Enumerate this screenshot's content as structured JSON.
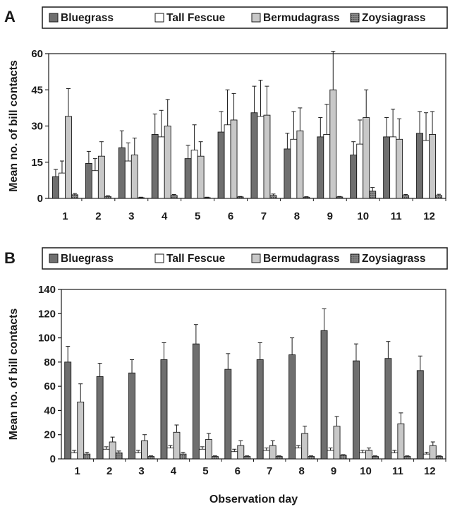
{
  "colors": {
    "bluegrass": "#6f6f6f",
    "tall_fescue": "#ffffff",
    "bermudagrass": "#c8c8c8",
    "zoysiagrass": "#8c8c8c",
    "stroke": "#1a1a1a"
  },
  "chart_data": [
    {
      "type": "bar",
      "panel_label": "A",
      "xlabel": "",
      "ylabel": "Mean no. of bill contacts",
      "ylim": [
        0,
        60
      ],
      "yticks": [
        0,
        15,
        30,
        45,
        60
      ],
      "legend_position": "top",
      "categories": [
        "1",
        "2",
        "3",
        "4",
        "5",
        "6",
        "7",
        "8",
        "9",
        "10",
        "11",
        "12"
      ],
      "series": [
        {
          "name": "Bluegrass",
          "values": [
            9,
            14.5,
            21,
            26.5,
            16.5,
            27.5,
            35.5,
            20.5,
            25.5,
            18,
            25.5,
            27
          ],
          "errors": [
            3,
            5,
            7,
            8.5,
            5.5,
            8.5,
            11,
            6.5,
            8,
            5.5,
            8,
            9
          ]
        },
        {
          "name": "Tall Fescue",
          "values": [
            10.5,
            11.5,
            15.5,
            25.5,
            20,
            30.5,
            34,
            24.5,
            26.5,
            22.5,
            25.5,
            24
          ],
          "errors": [
            5,
            5,
            7.5,
            11,
            10.5,
            14.5,
            15,
            11.5,
            12.5,
            10,
            11.5,
            11.5
          ]
        },
        {
          "name": "Bermudagrass",
          "values": [
            34,
            17.5,
            18,
            30,
            17.5,
            32.5,
            34.5,
            28,
            45,
            33.5,
            24.5,
            26.5
          ],
          "errors": [
            11.5,
            6,
            7,
            11,
            6,
            11,
            12,
            9.5,
            16,
            11.5,
            8.5,
            9.5
          ]
        },
        {
          "name": "Zoysiagrass",
          "values": [
            1.5,
            0.8,
            0.3,
            1.2,
            0.3,
            0.6,
            1.2,
            0.5,
            0.6,
            3,
            1.2,
            1.2
          ],
          "errors": [
            0.5,
            0.3,
            0.2,
            0.4,
            0.2,
            0.2,
            0.6,
            0.2,
            0.2,
            1.5,
            0.4,
            0.5
          ]
        }
      ]
    },
    {
      "type": "bar",
      "panel_label": "B",
      "xlabel": "Observation day",
      "ylabel": "Mean no. of bill contacts",
      "ylim": [
        0,
        140
      ],
      "yticks": [
        0,
        20,
        40,
        60,
        80,
        100,
        120,
        140
      ],
      "legend_position": "top",
      "categories": [
        "1",
        "2",
        "3",
        "4",
        "5",
        "6",
        "7",
        "8",
        "9",
        "10",
        "11",
        "12"
      ],
      "series": [
        {
          "name": "Bluegrass",
          "values": [
            80,
            68,
            71,
            82,
            95,
            74,
            82,
            86,
            106,
            81,
            83,
            73
          ],
          "errors": [
            13,
            11,
            11,
            14,
            16,
            13,
            14,
            14,
            18,
            14,
            14,
            12
          ]
        },
        {
          "name": "Tall Fescue",
          "values": [
            5,
            8,
            5,
            9,
            8,
            6,
            7,
            9,
            7,
            5,
            5,
            4
          ],
          "errors": [
            2,
            2,
            2,
            2,
            2,
            2,
            2,
            2,
            2,
            2,
            2,
            1.5
          ]
        },
        {
          "name": "Bermudagrass",
          "values": [
            47,
            14,
            15,
            22,
            16,
            11,
            11,
            21,
            27,
            7,
            29,
            11
          ],
          "errors": [
            15,
            4,
            5,
            6,
            5,
            4,
            4,
            6,
            8,
            2,
            9,
            3
          ]
        },
        {
          "name": "Zoysiagrass",
          "values": [
            4,
            5,
            2,
            4,
            2,
            2,
            2,
            2,
            3,
            2,
            2,
            2
          ],
          "errors": [
            1.5,
            1.5,
            0.5,
            1.5,
            0.5,
            0.5,
            0.5,
            0.5,
            0.5,
            0.5,
            0.5,
            0.5
          ]
        }
      ]
    }
  ]
}
